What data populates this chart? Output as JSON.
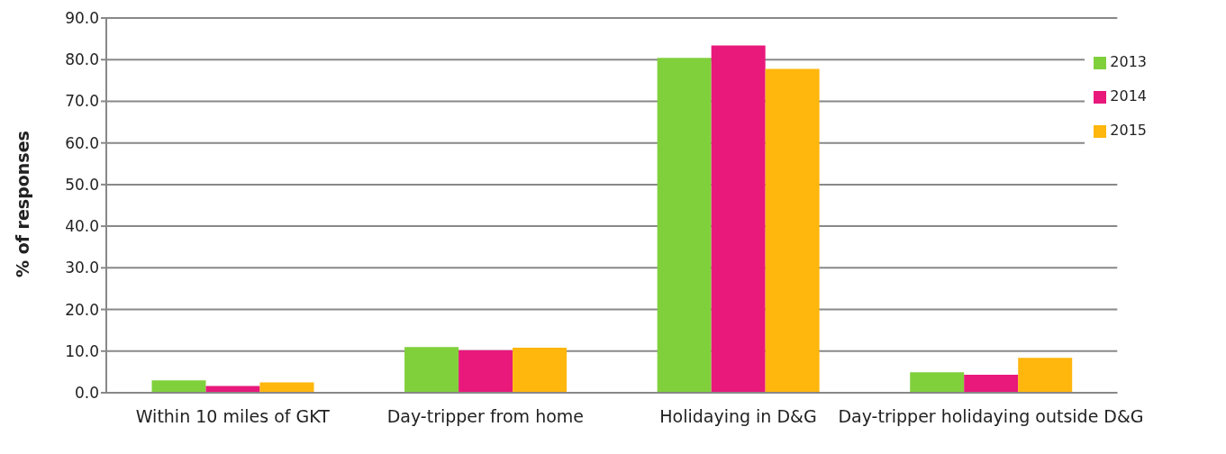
{
  "chart_data": {
    "type": "bar",
    "ylabel": "% of responses",
    "categories": [
      "Within 10 miles of GKT",
      "Day-tripper from home",
      "Holidaying in D&G",
      "Day-tripper holidaying outside D&G"
    ],
    "series": [
      {
        "name": "2013",
        "color": "#80d03c",
        "values": [
          3.0,
          11.0,
          80.4,
          4.9
        ]
      },
      {
        "name": "2014",
        "color": "#e8197b",
        "values": [
          1.6,
          10.2,
          83.4,
          4.3
        ]
      },
      {
        "name": "2015",
        "color": "#ffb60d",
        "values": [
          2.5,
          10.8,
          77.8,
          8.4
        ]
      }
    ],
    "ylim": [
      0,
      90
    ],
    "yticks": [
      {
        "value": 0,
        "label": "0.0"
      },
      {
        "value": 10,
        "label": "10.0"
      },
      {
        "value": 20,
        "label": "20.0"
      },
      {
        "value": 30,
        "label": "30.0"
      },
      {
        "value": 40,
        "label": "40.0"
      },
      {
        "value": 50,
        "label": "50.0"
      },
      {
        "value": 60,
        "label": "60.0"
      },
      {
        "value": 70,
        "label": "70.0"
      },
      {
        "value": 80,
        "label": "80.0"
      },
      {
        "value": 90,
        "label": "90.0"
      }
    ],
    "grid": "y",
    "legend": "top right"
  }
}
